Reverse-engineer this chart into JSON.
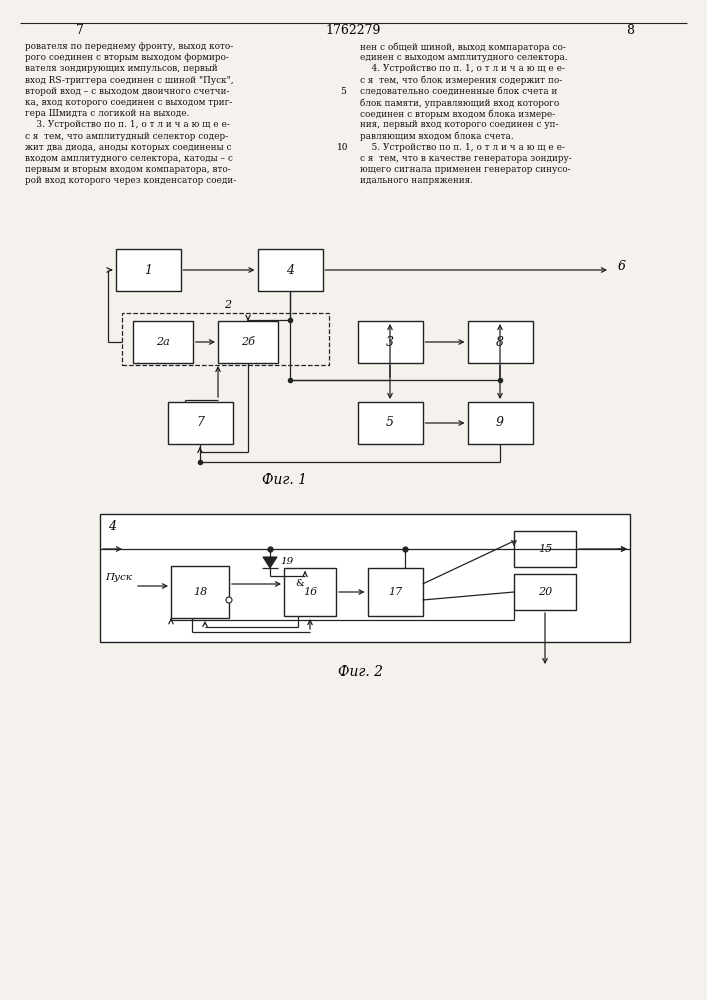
{
  "page_bg": "#f5f2ee",
  "header_text": "1762279",
  "page_left": "7",
  "page_right": "8",
  "fig1_caption": "Фиг. 1",
  "fig2_caption": "Фиг. 2",
  "text_left_lines": [
    "рователя по переднему фронту, выход кото-",
    "рого соединен с вторым выходом формиро-",
    "вателя зондирующих импульсов, первый",
    "вход RS-триггера соединен с шиной \"Пуск\",",
    "второй вход – с выходом двоичного счетчи-",
    "ка, вход которого соединен с выходом триг-",
    "гера Шмидта с логикой на выходе.",
    "    3. Устройство по п. 1, о т л и ч а ю щ е е-",
    "с я  тем, что амплитудный селектор содер-",
    "жит два диода, аноды которых соединены с",
    "входом амплитудного селектора, катоды – с",
    "первым и вторым входом компаратора, вто-",
    "рой вход которого через конденсатор соеди-"
  ],
  "text_right_lines": [
    "нен с общей шиной, выход компаратора со-",
    "единен с выходом амплитудного селектора.",
    "    4. Устройство по п. 1, о т л и ч а ю щ е е-",
    "с я  тем, что блок измерения содержит по-",
    "следовательно соединенные блок счета и",
    "блок памяти, управляющий вход которого",
    "соединен с вторым входом блока измере-",
    "ния, первый вход которого соединен с уп-",
    "равляющим входом блока счета.",
    "    5. Устройство по п. 1, о т л и ч а ю щ е е-",
    "с я  тем, что в качестве генератора зондиру-",
    "ющего сигнала применен генератор синусо-",
    "идального напряжения."
  ]
}
